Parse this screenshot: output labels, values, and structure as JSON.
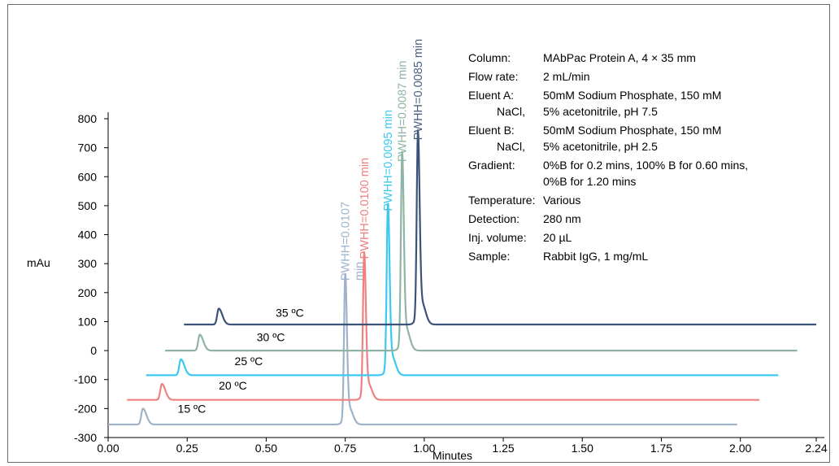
{
  "chart_data": {
    "type": "line",
    "xlabel": "Minutes",
    "ylabel": "mAu",
    "xlim": [
      0,
      2.24
    ],
    "ylim": [
      -300,
      800
    ],
    "xticks": [
      "0.00",
      "0.25",
      "0.50",
      "0.75",
      "1.00",
      "1.25",
      "1.50",
      "1.75",
      "2.00",
      "2.24"
    ],
    "yticks": [
      "800",
      "700",
      "600",
      "500",
      "400",
      "300",
      "200",
      "100",
      "0",
      "-100",
      "-200",
      "-300"
    ],
    "series": [
      {
        "name": "15 ºC",
        "color": "#9db3cc",
        "x_start": 0.0,
        "x_end": 1.99,
        "baseline": -255,
        "small_peak": {
          "x": 0.11,
          "height": 55
        },
        "main_peak": {
          "x": 0.75,
          "apex": 230
        },
        "label_at": [
          0.22,
          -215
        ],
        "pwhh": "PWHH=0.0107",
        "pwhh_extra": "min",
        "pwhh_color": "#9db3cc"
      },
      {
        "name": "20 ºC",
        "color": "#f08080",
        "x_start": 0.06,
        "x_end": 2.06,
        "baseline": -170,
        "small_peak": {
          "x": 0.17,
          "height": 55
        },
        "main_peak": {
          "x": 0.81,
          "apex": 305
        },
        "label_at": [
          0.35,
          -135
        ],
        "pwhh": "PWHH=0.0100 min",
        "pwhh_extra": "",
        "pwhh_color": "#f08080"
      },
      {
        "name": "25 ºC",
        "color": "#3cc8f0",
        "x_start": 0.12,
        "x_end": 2.12,
        "baseline": -85,
        "small_peak": {
          "x": 0.23,
          "height": 55
        },
        "main_peak": {
          "x": 0.885,
          "apex": 470
        },
        "label_at": [
          0.4,
          -50
        ],
        "pwhh": "PWHH=0.0095 min",
        "pwhh_extra": "",
        "pwhh_color": "#3cc8f0"
      },
      {
        "name": "30 ºC",
        "color": "#8fb4a4",
        "x_start": 0.18,
        "x_end": 2.18,
        "baseline": 0,
        "small_peak": {
          "x": 0.29,
          "height": 55
        },
        "main_peak": {
          "x": 0.93,
          "apex": 640
        },
        "label_at": [
          0.47,
          33
        ],
        "pwhh": "PWHH=0.0087 min",
        "pwhh_extra": "",
        "pwhh_color": "#8fb4a4"
      },
      {
        "name": "35 ºC",
        "color": "#3b5378",
        "x_start": 0.24,
        "x_end": 2.24,
        "baseline": 90,
        "small_peak": {
          "x": 0.35,
          "height": 55
        },
        "main_peak": {
          "x": 0.98,
          "apex": 715
        },
        "label_at": [
          0.53,
          117
        ],
        "pwhh": "PWHH=0.0085 min",
        "pwhh_extra": "",
        "pwhh_color": "#4a5f80"
      }
    ]
  },
  "info": [
    {
      "label": "Column:",
      "lines": [
        "MAbPac Protein A, 4 × 35 mm"
      ]
    },
    {
      "label": "Flow rate:",
      "lines": [
        "2 mL/min"
      ]
    },
    {
      "label": "Eluent A:",
      "label2": "NaCl,",
      "lines": [
        "50mM Sodium Phosphate, 150 mM",
        "5% acetonitrile, pH 7.5"
      ]
    },
    {
      "label": "Eluent B:",
      "label2": "NaCl,",
      "lines": [
        "50mM Sodium Phosphate, 150 mM",
        "5% acetonitrile, pH 2.5"
      ]
    },
    {
      "label": "Gradient:",
      "lines": [
        " 0%B for 0.2 mins, 100% B for 0.60 mins,",
        " 0%B for 1.20 mins"
      ]
    },
    {
      "label": "Temperature:",
      "lines": [
        "Various"
      ]
    },
    {
      "label": "Detection:",
      "lines": [
        "280 nm"
      ]
    },
    {
      "label": "Inj. volume:",
      "lines": [
        "20 µL"
      ]
    },
    {
      "label": "Sample:",
      "lines": [
        "Rabbit IgG, 1 mg/mL"
      ]
    }
  ]
}
